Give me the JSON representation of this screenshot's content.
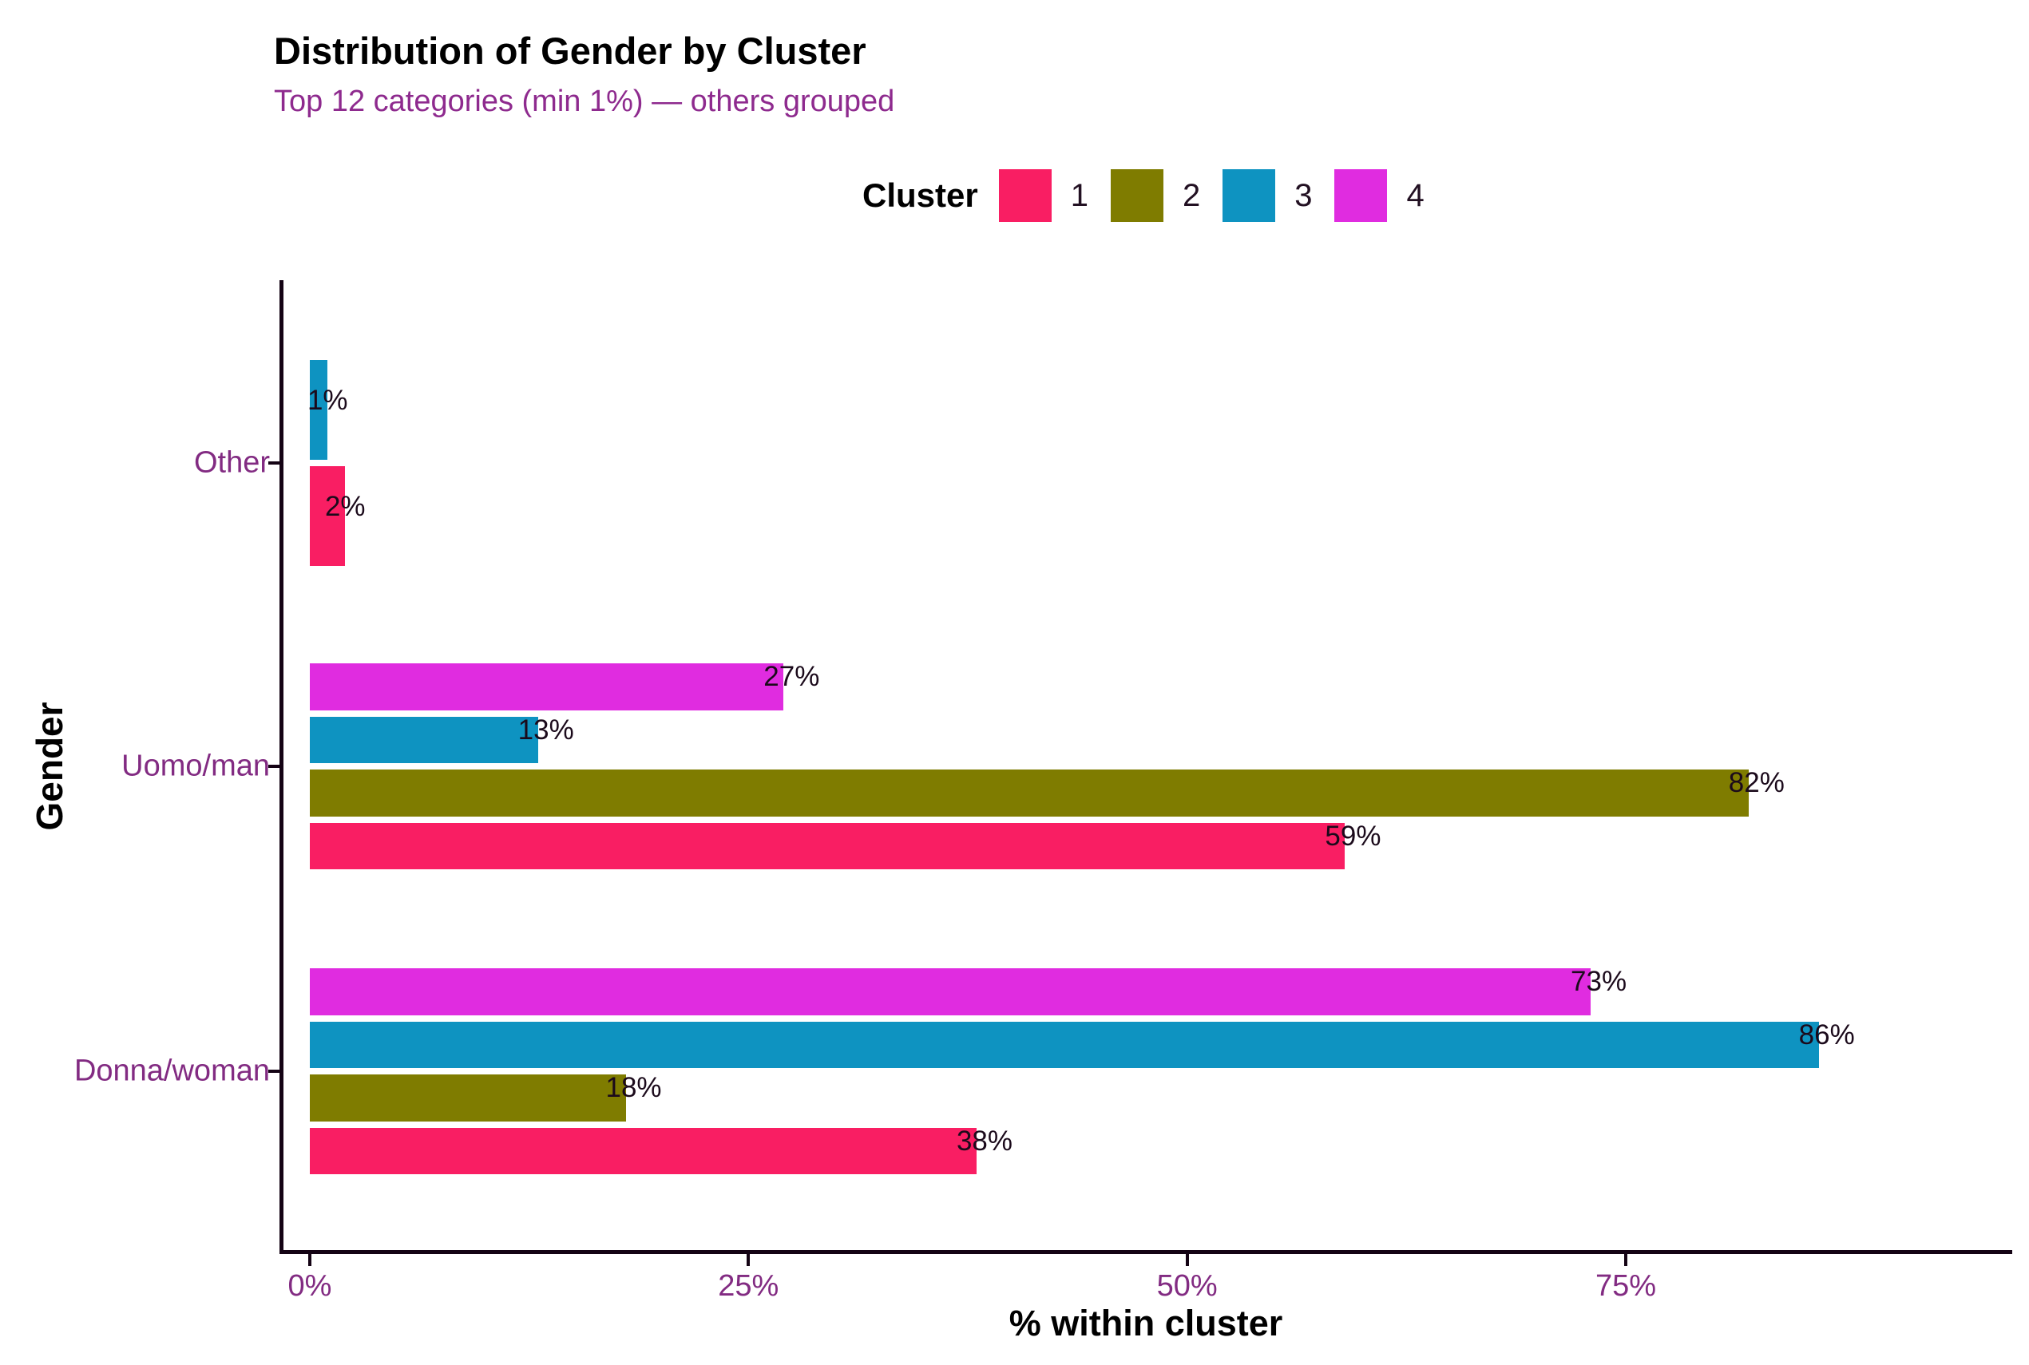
{
  "chart_data": {
    "type": "bar",
    "orientation": "horizontal",
    "title": "Distribution of Gender by Cluster",
    "subtitle": "Top 12 categories (min 1%) — others grouped",
    "xlabel": "% within cluster",
    "ylabel": "Gender",
    "legend_title": "Cluster",
    "legend_position": "top",
    "grid": false,
    "xlim": [
      0,
      97
    ],
    "x_ticks": [
      {
        "value": 0,
        "label": "0%"
      },
      {
        "value": 25,
        "label": "25%"
      },
      {
        "value": 50,
        "label": "50%"
      },
      {
        "value": 75,
        "label": "75%"
      }
    ],
    "categories": [
      "Other",
      "Uomo/man",
      "Donna/woman"
    ],
    "series": [
      {
        "name": "1",
        "color": "#F91E63",
        "values": {
          "Other": 2,
          "Uomo/man": 59,
          "Donna/woman": 38
        }
      },
      {
        "name": "2",
        "color": "#7F7C00",
        "values": {
          "Other": null,
          "Uomo/man": 82,
          "Donna/woman": 18
        }
      },
      {
        "name": "3",
        "color": "#0E93C1",
        "values": {
          "Other": 1,
          "Uomo/man": 13,
          "Donna/woman": 86
        }
      },
      {
        "name": "4",
        "color": "#E02CE0",
        "values": {
          "Other": null,
          "Uomo/man": 27,
          "Donna/woman": 73
        }
      }
    ],
    "bar_label_format": "{value}%",
    "bar_labels": {
      "Other": {
        "3": "1%",
        "1": "2%"
      },
      "Uomo/man": {
        "4": "27%",
        "3": "13%",
        "2": "82%",
        "1": "59%"
      },
      "Donna/woman": {
        "4": "73%",
        "3": "86%",
        "2": "18%",
        "1": "38%"
      }
    },
    "colors": {
      "title_text": "#000000",
      "subtitle_text": "#8E2A8E",
      "axis_tick_text": "#822B82",
      "axis_line": "#140314",
      "value_label_text": "#1B0A1B",
      "background": "#ffffff"
    }
  }
}
